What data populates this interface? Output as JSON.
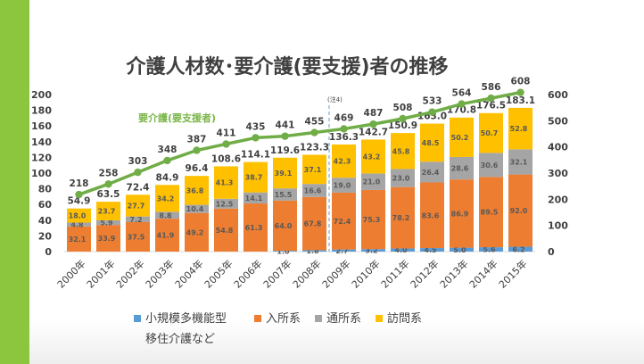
{
  "chart_data": {
    "type": "bar",
    "stacked": true,
    "title": "介護人材数･要介護(要支援)者の推移",
    "categories": [
      "2000年",
      "2001年",
      "2002年",
      "2003年",
      "2004年",
      "2005年",
      "2006年",
      "2007年",
      "2008年",
      "2009年",
      "2010年",
      "2011年",
      "2012年",
      "2013年",
      "2014年",
      "2015年"
    ],
    "series": [
      {
        "name": "小規模多機能型移住介護など",
        "name_lines": [
          "小規模多機能型",
          "移住介護など"
        ],
        "color": "#5b9bd5",
        "values": [
          null,
          null,
          null,
          null,
          null,
          null,
          null,
          1.0,
          1.8,
          2.7,
          3.2,
          4.0,
          4.5,
          5.0,
          5.6,
          6.2
        ],
        "labels": [
          "",
          "",
          "",
          "",
          "",
          "",
          "",
          "1.0",
          "1.8",
          "2.7",
          "3.2",
          "4.0",
          "4.5",
          "5.0",
          "5.6",
          "6.2"
        ]
      },
      {
        "name": "入所系",
        "color": "#ed7d31",
        "values": [
          32.1,
          33.9,
          37.5,
          41.9,
          49.2,
          54.8,
          61.3,
          64.0,
          67.8,
          72.4,
          75.3,
          78.2,
          83.6,
          86.9,
          89.5,
          92.0
        ],
        "labels": [
          "32.1",
          "33.9",
          "37.5",
          "41.9",
          "49.2",
          "54.8",
          "61.3",
          "64.0",
          "67.8",
          "72.4",
          "75.3",
          "78.2",
          "83.6",
          "86.9",
          "89.5",
          "92.0"
        ]
      },
      {
        "name": "通所系",
        "color": "#a5a5a5",
        "values": [
          4.8,
          5.9,
          7.2,
          8.8,
          10.4,
          12.5,
          14.1,
          15.5,
          16.6,
          19.0,
          21.0,
          23.0,
          26.4,
          28.6,
          30.6,
          32.1
        ],
        "labels": [
          "4.8",
          "5.9",
          "7.2",
          "8.8",
          "10.4",
          "12.5",
          "14.1",
          "15.5",
          "16.6",
          "19.0",
          "21.0",
          "23.0",
          "26.4",
          "28.6",
          "30.6",
          "32.1"
        ]
      },
      {
        "name": "訪問系",
        "color": "#ffc000",
        "values": [
          18.0,
          23.7,
          27.7,
          34.2,
          36.8,
          41.3,
          38.7,
          39.1,
          37.1,
          42.3,
          43.2,
          45.8,
          48.5,
          50.2,
          50.7,
          52.8
        ],
        "labels": [
          "18.0",
          "23.7",
          "27.7",
          "34.2",
          "36.8",
          "41.3",
          "38.7",
          "39.1",
          "37.1",
          "42.3",
          "43.2",
          "45.8",
          "48.5",
          "50.2",
          "50.7",
          "52.8"
        ]
      }
    ],
    "totals": [
      54.9,
      63.5,
      72.4,
      84.9,
      96.4,
      108.6,
      114.1,
      119.6,
      123.3,
      136.3,
      142.7,
      150.9,
      163.0,
      170.8,
      176.5,
      183.1
    ],
    "totals_labels": [
      "54.9",
      "63.5",
      "72.4",
      "84.9",
      "96.4",
      "108.6",
      "114.1",
      "119.6",
      "123.3",
      "136.3",
      "142.7",
      "150.9",
      "163.0",
      "170.8",
      "176.5",
      "183.1"
    ],
    "line": {
      "name": "要介護(要支援者)",
      "axis": "right",
      "color": "#70ad47",
      "values": [
        218,
        258,
        303,
        348,
        387,
        411,
        435,
        441,
        455,
        469,
        487,
        508,
        533,
        564,
        586,
        608
      ],
      "labels": [
        "218",
        "258",
        "303",
        "348",
        "387",
        "411",
        "435",
        "441",
        "455",
        "469",
        "487",
        "508",
        "533",
        "564",
        "586",
        "608"
      ]
    },
    "y_left": {
      "min": 0,
      "max": 200,
      "ticks": [
        "0",
        "20",
        "40",
        "60",
        "80",
        "100",
        "120",
        "140",
        "160",
        "180",
        "200"
      ]
    },
    "y_right": {
      "min": 0,
      "max": 600,
      "ticks": [
        "0",
        "100",
        "200",
        "300",
        "400",
        "500",
        "600"
      ]
    },
    "annotation": {
      "text": "(注4)",
      "between": [
        "2008年",
        "2009年"
      ],
      "divider": "dashed"
    },
    "grid": false,
    "legend": "bottom"
  }
}
